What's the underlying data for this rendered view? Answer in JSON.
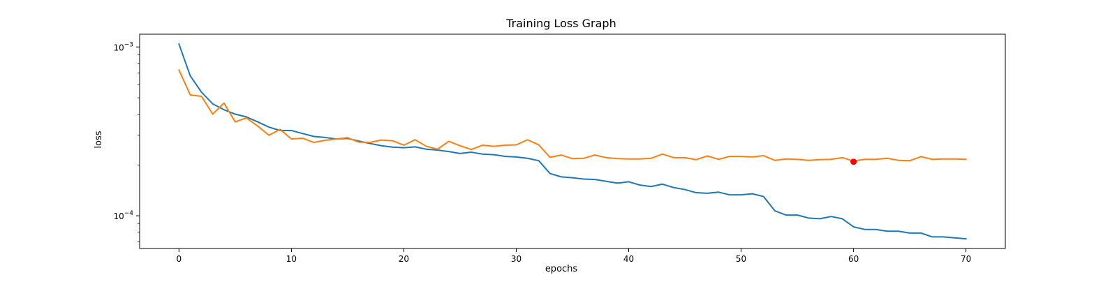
{
  "chart_data": {
    "type": "line",
    "title": "Training Loss Graph",
    "xlabel": "epochs",
    "ylabel": "loss",
    "yscale": "log",
    "xlim": [
      -3.5,
      73.5
    ],
    "ylim": [
      6.4e-05,
      0.00119
    ],
    "x_ticks": [
      0,
      10,
      20,
      30,
      40,
      50,
      60,
      70
    ],
    "x_tick_labels": [
      "0",
      "10",
      "20",
      "30",
      "40",
      "50",
      "60",
      "70"
    ],
    "y_ticks": [
      {
        "value": 0.001,
        "base": "10",
        "exp": "−3"
      },
      {
        "value": 0.0001,
        "base": "10",
        "exp": "−4"
      }
    ],
    "grid": false,
    "series": [
      {
        "color": "#1f77b4",
        "x": [
          0,
          1,
          2,
          3,
          4,
          5,
          6,
          7,
          8,
          9,
          10,
          11,
          12,
          13,
          14,
          15,
          16,
          17,
          18,
          19,
          20,
          21,
          22,
          23,
          24,
          25,
          26,
          27,
          28,
          29,
          30,
          31,
          32,
          33,
          34,
          35,
          36,
          37,
          38,
          39,
          40,
          41,
          42,
          43,
          44,
          45,
          46,
          47,
          48,
          49,
          50,
          51,
          52,
          53,
          54,
          55,
          56,
          57,
          58,
          59,
          60,
          61,
          62,
          63,
          64,
          65,
          66,
          67,
          68,
          69,
          70
        ],
        "values": [
          0.00104,
          0.000675,
          0.00054,
          0.00046,
          0.000425,
          0.0004,
          0.000385,
          0.00036,
          0.000335,
          0.00032,
          0.00032,
          0.000307,
          0.000295,
          0.000291,
          0.000285,
          0.000287,
          0.000277,
          0.000268,
          0.00026,
          0.000255,
          0.000253,
          0.000256,
          0.000248,
          0.000245,
          0.00024,
          0.000234,
          0.000238,
          0.000232,
          0.00023,
          0.000225,
          0.000223,
          0.000219,
          0.000212,
          0.000178,
          0.00017,
          0.000168,
          0.000165,
          0.000164,
          0.00016,
          0.000156,
          0.000159,
          0.000152,
          0.000149,
          0.000154,
          0.000147,
          0.000143,
          0.000137,
          0.000136,
          0.000138,
          0.000133,
          0.000133,
          0.000135,
          0.00013,
          0.000107,
          0.000101,
          0.000101,
          9.7e-05,
          9.6e-05,
          9.9e-05,
          9.6e-05,
          8.6e-05,
          8.3e-05,
          8.3e-05,
          8.1e-05,
          8.1e-05,
          7.9e-05,
          7.9e-05,
          7.5e-05,
          7.5e-05,
          7.4e-05,
          7.3e-05
        ]
      },
      {
        "color": "#ff7f0e",
        "x": [
          0,
          1,
          2,
          3,
          4,
          5,
          6,
          7,
          8,
          9,
          10,
          11,
          12,
          13,
          14,
          15,
          16,
          17,
          18,
          19,
          20,
          21,
          22,
          23,
          24,
          25,
          26,
          27,
          28,
          29,
          30,
          31,
          32,
          33,
          34,
          35,
          36,
          37,
          38,
          39,
          40,
          41,
          42,
          43,
          44,
          45,
          46,
          47,
          48,
          49,
          50,
          51,
          52,
          53,
          54,
          55,
          56,
          57,
          58,
          59,
          60,
          61,
          62,
          63,
          64,
          65,
          66,
          67,
          68,
          69,
          70
        ],
        "values": [
          0.00073,
          0.00052,
          0.00051,
          0.0004,
          0.000465,
          0.00036,
          0.00038,
          0.00034,
          0.0003,
          0.000325,
          0.000285,
          0.000288,
          0.000272,
          0.00028,
          0.000285,
          0.00029,
          0.000273,
          0.000272,
          0.000281,
          0.000278,
          0.000262,
          0.000282,
          0.000258,
          0.000248,
          0.000276,
          0.00026,
          0.000247,
          0.000262,
          0.000258,
          0.000262,
          0.000263,
          0.000282,
          0.000263,
          0.000222,
          0.000229,
          0.000218,
          0.000219,
          0.000229,
          0.000221,
          0.000218,
          0.000217,
          0.000217,
          0.000219,
          0.000232,
          0.000221,
          0.000221,
          0.000215,
          0.000226,
          0.000216,
          0.000225,
          0.000225,
          0.000223,
          0.000227,
          0.000213,
          0.000217,
          0.000216,
          0.000213,
          0.000215,
          0.000216,
          0.000221,
          0.000211,
          0.000216,
          0.000216,
          0.000219,
          0.000213,
          0.000212,
          0.000224,
          0.000216,
          0.000217,
          0.000217,
          0.000216
        ]
      }
    ],
    "highlight_point": {
      "x": 60,
      "y": 0.000209,
      "color": "#ff0000"
    }
  }
}
